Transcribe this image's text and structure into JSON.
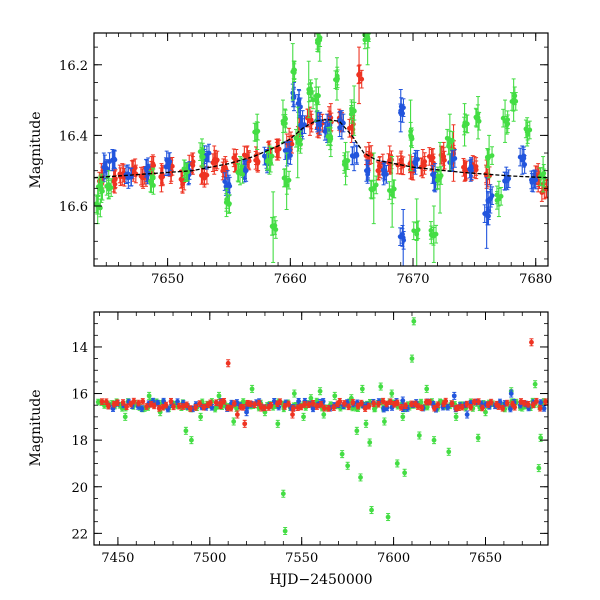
{
  "chart_data": [
    {
      "type": "scatter",
      "title": "",
      "xlabel": "",
      "ylabel": "Magnitude",
      "xlim": [
        7644,
        7681
      ],
      "ylim": [
        16.77,
        16.11
      ],
      "y_inverted": true,
      "xticks": [
        7650,
        7660,
        7670,
        7680
      ],
      "xtick_labels": [
        "7650",
        "7660",
        "7670",
        "7680"
      ],
      "yticks": [
        16.2,
        16.4,
        16.6
      ],
      "ytick_labels": [
        "16.2",
        "16.4",
        "16.6"
      ],
      "grid": false,
      "series": [
        {
          "color": "#ee3322",
          "marker": "circle with error bars",
          "points": [
            [
              7644.6,
              16.52,
              0.04
            ],
            [
              7645.6,
              16.53,
              0.03
            ],
            [
              7646.3,
              16.51,
              0.03
            ],
            [
              7647.2,
              16.5,
              0.03
            ],
            [
              7648.0,
              16.52,
              0.03
            ],
            [
              7648.7,
              16.49,
              0.03
            ],
            [
              7649.5,
              16.52,
              0.04
            ],
            [
              7650.3,
              16.5,
              0.03
            ],
            [
              7651.2,
              16.53,
              0.03
            ],
            [
              7652.0,
              16.48,
              0.03
            ],
            [
              7653.0,
              16.51,
              0.03
            ],
            [
              7653.8,
              16.47,
              0.04
            ],
            [
              7654.7,
              16.49,
              0.03
            ],
            [
              7655.6,
              16.47,
              0.03
            ],
            [
              7656.5,
              16.46,
              0.03
            ],
            [
              7657.3,
              16.47,
              0.03
            ],
            [
              7658.2,
              16.45,
              0.03
            ],
            [
              7659.0,
              16.44,
              0.03
            ],
            [
              7659.9,
              16.42,
              0.04
            ],
            [
              7660.8,
              16.39,
              0.04
            ],
            [
              7661.6,
              16.36,
              0.04
            ],
            [
              7662.4,
              16.37,
              0.03
            ],
            [
              7663.3,
              16.35,
              0.04
            ],
            [
              7664.1,
              16.36,
              0.03
            ],
            [
              7665.0,
              16.38,
              0.04
            ],
            [
              7665.6,
              16.23,
              0.08
            ],
            [
              7666.4,
              16.46,
              0.04
            ],
            [
              7667.3,
              16.49,
              0.03
            ],
            [
              7668.1,
              16.47,
              0.04
            ],
            [
              7669.0,
              16.48,
              0.03
            ],
            [
              7669.9,
              16.49,
              0.03
            ],
            [
              7670.8,
              16.48,
              0.04
            ],
            [
              7671.5,
              16.47,
              0.03
            ],
            [
              7672.5,
              16.46,
              0.04
            ],
            [
              7673.3,
              16.45,
              0.08
            ],
            [
              7674.2,
              16.5,
              0.03
            ],
            [
              7675.0,
              16.49,
              0.03
            ],
            [
              7676.0,
              16.51,
              0.04
            ],
            [
              7680.2,
              16.52,
              0.04
            ],
            [
              7680.7,
              16.55,
              0.03
            ]
          ]
        },
        {
          "color": "#2255dd",
          "marker": "circle with error bars",
          "points": [
            [
              7644.8,
              16.49,
              0.04
            ],
            [
              7645.5,
              16.47,
              0.03
            ],
            [
              7646.8,
              16.52,
              0.03
            ],
            [
              7648.3,
              16.5,
              0.03
            ],
            [
              7650.1,
              16.48,
              0.03
            ],
            [
              7651.7,
              16.51,
              0.03
            ],
            [
              7653.2,
              16.46,
              0.03
            ],
            [
              7654.9,
              16.54,
              0.04
            ],
            [
              7656.4,
              16.5,
              0.03
            ],
            [
              7658.1,
              16.47,
              0.03
            ],
            [
              7659.8,
              16.45,
              0.03
            ],
            [
              7660.3,
              16.29,
              0.04
            ],
            [
              7660.7,
              16.31,
              0.04
            ],
            [
              7661.0,
              16.37,
              0.04
            ],
            [
              7662.2,
              16.36,
              0.03
            ],
            [
              7663.0,
              16.38,
              0.04
            ],
            [
              7664.2,
              16.37,
              0.04
            ],
            [
              7665.2,
              16.46,
              0.04
            ],
            [
              7666.2,
              16.5,
              0.03
            ],
            [
              7667.6,
              16.51,
              0.03
            ],
            [
              7669.0,
              16.33,
              0.06
            ],
            [
              7669.2,
              16.69,
              0.08
            ],
            [
              7670.2,
              16.48,
              0.03
            ],
            [
              7671.8,
              16.52,
              0.04
            ],
            [
              7673.2,
              16.47,
              0.03
            ],
            [
              7674.7,
              16.5,
              0.03
            ],
            [
              7676.0,
              16.62,
              0.1
            ],
            [
              7676.3,
              16.58,
              0.04
            ],
            [
              7677.6,
              16.52,
              0.03
            ],
            [
              7678.9,
              16.47,
              0.04
            ],
            [
              7679.8,
              16.53,
              0.03
            ]
          ]
        },
        {
          "color": "#44dd44",
          "marker": "circle with error bars",
          "points": [
            [
              7644.3,
              16.6,
              0.05
            ],
            [
              7644.6,
              16.55,
              0.04
            ],
            [
              7645.2,
              16.54,
              0.04
            ],
            [
              7648.6,
              16.53,
              0.03
            ],
            [
              7651.4,
              16.5,
              0.03
            ],
            [
              7652.8,
              16.45,
              0.04
            ],
            [
              7654.8,
              16.59,
              0.04
            ],
            [
              7655.9,
              16.5,
              0.04
            ],
            [
              7657.3,
              16.39,
              0.05
            ],
            [
              7658.3,
              16.47,
              0.04
            ],
            [
              7658.6,
              16.66,
              0.1
            ],
            [
              7659.4,
              16.36,
              0.06
            ],
            [
              7659.7,
              16.53,
              0.08
            ],
            [
              7660.2,
              16.22,
              0.08
            ],
            [
              7660.6,
              16.42,
              0.1
            ],
            [
              7661.5,
              16.27,
              0.08
            ],
            [
              7662.1,
              16.3,
              0.06
            ],
            [
              7662.4,
              16.13,
              0.06
            ],
            [
              7663.3,
              16.41,
              0.05
            ],
            [
              7663.8,
              16.24,
              0.06
            ],
            [
              7664.5,
              16.48,
              0.06
            ],
            [
              7665.2,
              16.33,
              0.07
            ],
            [
              7666.3,
              16.12,
              0.08
            ],
            [
              7666.8,
              16.55,
              0.1
            ],
            [
              7668.3,
              16.56,
              0.1
            ],
            [
              7669.8,
              16.4,
              0.1
            ],
            [
              7670.3,
              16.68,
              0.1
            ],
            [
              7671.7,
              16.68,
              0.08
            ],
            [
              7672.2,
              16.52,
              0.1
            ],
            [
              7673.0,
              16.42,
              0.08
            ],
            [
              7674.2,
              16.37,
              0.06
            ],
            [
              7675.3,
              16.35,
              0.06
            ],
            [
              7676.2,
              16.46,
              0.06
            ],
            [
              7677.0,
              16.58,
              0.05
            ],
            [
              7677.5,
              16.36,
              0.06
            ],
            [
              7678.2,
              16.3,
              0.06
            ],
            [
              7679.3,
              16.39,
              0.04
            ],
            [
              7680.6,
              16.51,
              0.05
            ]
          ]
        },
        {
          "type": "line",
          "color": "#000000",
          "name": "",
          "points": [
            [
              7644,
              16.52
            ],
            [
              7648,
              16.51
            ],
            [
              7652,
              16.5
            ],
            [
              7655,
              16.48
            ],
            [
              7657,
              16.46
            ],
            [
              7659,
              16.43
            ],
            [
              7660,
              16.41
            ],
            [
              7661,
              16.38
            ],
            [
              7662,
              16.36
            ],
            [
              7663,
              16.355
            ],
            [
              7664,
              16.36
            ],
            [
              7665,
              16.4
            ],
            [
              7666,
              16.45
            ],
            [
              7667,
              16.47
            ],
            [
              7670,
              16.49
            ],
            [
              7674,
              16.505
            ],
            [
              7678,
              16.515
            ],
            [
              7681,
              16.52
            ]
          ]
        }
      ]
    },
    {
      "type": "scatter",
      "title": "",
      "xlabel": "HJD−2450000",
      "ylabel": "Magnitude",
      "xlim": [
        7437,
        7684
      ],
      "ylim": [
        22.5,
        12.5
      ],
      "y_inverted": true,
      "xticks": [
        7450,
        7500,
        7550,
        7600,
        7650
      ],
      "xtick_labels": [
        "7450",
        "7500",
        "7550",
        "7600",
        "7650"
      ],
      "yticks": [
        14,
        16,
        18,
        20,
        22
      ],
      "ytick_labels": [
        "14",
        "16",
        "18",
        "20",
        "22"
      ],
      "grid": false,
      "baseline_mag": 16.5,
      "series": [
        {
          "color": "#44dd44",
          "marker": "circle with error bars",
          "baseline_x_range": [
            7440,
            7682
          ],
          "baseline_points": 150,
          "outliers": [
            [
              7454,
              17.0
            ],
            [
              7467,
              16.1
            ],
            [
              7473,
              16.8
            ],
            [
              7487,
              17.6
            ],
            [
              7490,
              18.0
            ],
            [
              7495,
              17.0
            ],
            [
              7505,
              16.1
            ],
            [
              7513,
              17.2
            ],
            [
              7523,
              15.8
            ],
            [
              7530,
              16.8
            ],
            [
              7537,
              17.3
            ],
            [
              7540,
              20.3
            ],
            [
              7541,
              21.9
            ],
            [
              7546,
              16.0
            ],
            [
              7551,
              17.0
            ],
            [
              7555,
              16.2
            ],
            [
              7560,
              15.9
            ],
            [
              7562,
              16.9
            ],
            [
              7568,
              16.1
            ],
            [
              7572,
              18.6
            ],
            [
              7575,
              19.1
            ],
            [
              7577,
              16.2
            ],
            [
              7580,
              17.6
            ],
            [
              7582,
              19.6
            ],
            [
              7583,
              15.8
            ],
            [
              7585,
              17.3
            ],
            [
              7587,
              18.1
            ],
            [
              7588,
              21.0
            ],
            [
              7590,
              16.6
            ],
            [
              7593,
              15.7
            ],
            [
              7595,
              17.2
            ],
            [
              7597,
              21.3
            ],
            [
              7599,
              16.0
            ],
            [
              7602,
              19.0
            ],
            [
              7605,
              17.0
            ],
            [
              7606,
              19.4
            ],
            [
              7610,
              14.5
            ],
            [
              7611,
              12.9
            ],
            [
              7614,
              17.8
            ],
            [
              7618,
              15.8
            ],
            [
              7622,
              18.0
            ],
            [
              7624,
              16.6
            ],
            [
              7630,
              18.5
            ],
            [
              7634,
              17.0
            ],
            [
              7646,
              17.9
            ],
            [
              7650,
              16.8
            ],
            [
              7664,
              15.9
            ],
            [
              7670,
              16.6
            ],
            [
              7677,
              15.6
            ],
            [
              7679,
              19.2
            ],
            [
              7680,
              17.9
            ]
          ]
        },
        {
          "color": "#2255dd",
          "marker": "circle with error bars",
          "baseline_x_range": [
            7445,
            7682
          ],
          "baseline_points": 90,
          "outliers": [
            [
              7520,
              16.8
            ],
            [
              7560,
              16.4
            ],
            [
              7605,
              16.3
            ],
            [
              7633,
              16.1
            ],
            [
              7640,
              16.9
            ],
            [
              7664,
              16.0
            ]
          ]
        },
        {
          "color": "#ee3322",
          "marker": "circle with error bars",
          "baseline_x_range": [
            7441,
            7682
          ],
          "baseline_points": 110,
          "outliers": [
            [
              7506,
              16.4
            ],
            [
              7510,
              14.7
            ],
            [
              7515,
              16.9
            ],
            [
              7519,
              17.3
            ],
            [
              7528,
              16.6
            ],
            [
              7545,
              16.9
            ],
            [
              7675,
              13.8
            ]
          ]
        }
      ]
    }
  ]
}
